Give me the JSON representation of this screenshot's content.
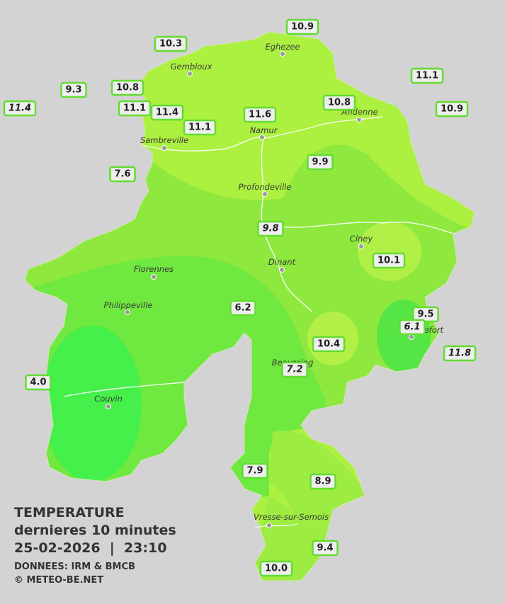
{
  "legend": {
    "title": "TEMPERATURE",
    "subtitle": "dernieres 10 minutes",
    "datetime": "25-02-2026  |  23:10",
    "source": "DONNEES: IRM & BMCB",
    "copyright": "© METEO-BE.NET"
  },
  "cities": [
    "Eghezee",
    "Gembloux",
    "Andenne",
    "Namur",
    "Sambreville",
    "Profondeville",
    "Ciney",
    "Dinant",
    "Florennes",
    "Philippeville",
    "Couvin",
    "Rochefort",
    "Beauraing",
    "Vresse-sur-Semois"
  ],
  "stations": [
    {
      "label": "10.3"
    },
    {
      "label": "10.9"
    },
    {
      "label": "9.3"
    },
    {
      "label": "10.8"
    },
    {
      "label": "11.1"
    },
    {
      "label": "11.4",
      "italic": true
    },
    {
      "label": "11.1"
    },
    {
      "label": "11.4"
    },
    {
      "label": "11.6"
    },
    {
      "label": "10.8"
    },
    {
      "label": "10.9"
    },
    {
      "label": "11.1"
    },
    {
      "label": "7.6"
    },
    {
      "label": "9.9"
    },
    {
      "label": "9.8",
      "italic": true
    },
    {
      "label": "10.1"
    },
    {
      "label": "6.2"
    },
    {
      "label": "9.5"
    },
    {
      "label": "6.1",
      "italic": true
    },
    {
      "label": "10.4"
    },
    {
      "label": "11.8",
      "italic": true
    },
    {
      "label": "7.2",
      "italic": true
    },
    {
      "label": "4.0"
    },
    {
      "label": "7.9"
    },
    {
      "label": "8.9"
    },
    {
      "label": "9.4"
    },
    {
      "label": "10.0"
    }
  ]
}
